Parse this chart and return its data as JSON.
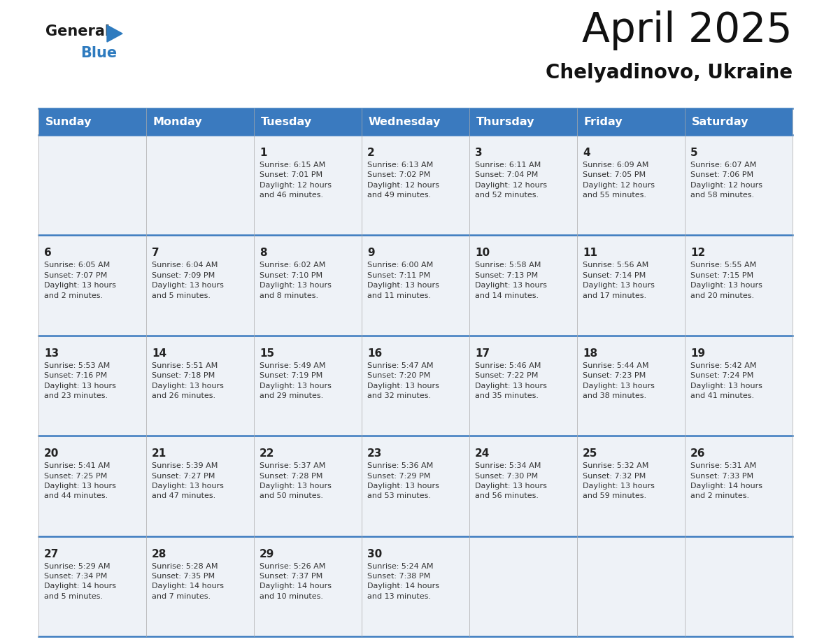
{
  "title": "April 2025",
  "subtitle": "Chelyadinovo, Ukraine",
  "header_color": "#3a7abf",
  "header_text_color": "#ffffff",
  "days_of_week": [
    "Sunday",
    "Monday",
    "Tuesday",
    "Wednesday",
    "Thursday",
    "Friday",
    "Saturday"
  ],
  "cell_bg_color": "#eef2f7",
  "border_color": "#3a7abf",
  "day_number_color": "#222222",
  "cell_text_color": "#333333",
  "calendar": [
    [
      {
        "day": null,
        "info": ""
      },
      {
        "day": null,
        "info": ""
      },
      {
        "day": 1,
        "info": "Sunrise: 6:15 AM\nSunset: 7:01 PM\nDaylight: 12 hours\nand 46 minutes."
      },
      {
        "day": 2,
        "info": "Sunrise: 6:13 AM\nSunset: 7:02 PM\nDaylight: 12 hours\nand 49 minutes."
      },
      {
        "day": 3,
        "info": "Sunrise: 6:11 AM\nSunset: 7:04 PM\nDaylight: 12 hours\nand 52 minutes."
      },
      {
        "day": 4,
        "info": "Sunrise: 6:09 AM\nSunset: 7:05 PM\nDaylight: 12 hours\nand 55 minutes."
      },
      {
        "day": 5,
        "info": "Sunrise: 6:07 AM\nSunset: 7:06 PM\nDaylight: 12 hours\nand 58 minutes."
      }
    ],
    [
      {
        "day": 6,
        "info": "Sunrise: 6:05 AM\nSunset: 7:07 PM\nDaylight: 13 hours\nand 2 minutes."
      },
      {
        "day": 7,
        "info": "Sunrise: 6:04 AM\nSunset: 7:09 PM\nDaylight: 13 hours\nand 5 minutes."
      },
      {
        "day": 8,
        "info": "Sunrise: 6:02 AM\nSunset: 7:10 PM\nDaylight: 13 hours\nand 8 minutes."
      },
      {
        "day": 9,
        "info": "Sunrise: 6:00 AM\nSunset: 7:11 PM\nDaylight: 13 hours\nand 11 minutes."
      },
      {
        "day": 10,
        "info": "Sunrise: 5:58 AM\nSunset: 7:13 PM\nDaylight: 13 hours\nand 14 minutes."
      },
      {
        "day": 11,
        "info": "Sunrise: 5:56 AM\nSunset: 7:14 PM\nDaylight: 13 hours\nand 17 minutes."
      },
      {
        "day": 12,
        "info": "Sunrise: 5:55 AM\nSunset: 7:15 PM\nDaylight: 13 hours\nand 20 minutes."
      }
    ],
    [
      {
        "day": 13,
        "info": "Sunrise: 5:53 AM\nSunset: 7:16 PM\nDaylight: 13 hours\nand 23 minutes."
      },
      {
        "day": 14,
        "info": "Sunrise: 5:51 AM\nSunset: 7:18 PM\nDaylight: 13 hours\nand 26 minutes."
      },
      {
        "day": 15,
        "info": "Sunrise: 5:49 AM\nSunset: 7:19 PM\nDaylight: 13 hours\nand 29 minutes."
      },
      {
        "day": 16,
        "info": "Sunrise: 5:47 AM\nSunset: 7:20 PM\nDaylight: 13 hours\nand 32 minutes."
      },
      {
        "day": 17,
        "info": "Sunrise: 5:46 AM\nSunset: 7:22 PM\nDaylight: 13 hours\nand 35 minutes."
      },
      {
        "day": 18,
        "info": "Sunrise: 5:44 AM\nSunset: 7:23 PM\nDaylight: 13 hours\nand 38 minutes."
      },
      {
        "day": 19,
        "info": "Sunrise: 5:42 AM\nSunset: 7:24 PM\nDaylight: 13 hours\nand 41 minutes."
      }
    ],
    [
      {
        "day": 20,
        "info": "Sunrise: 5:41 AM\nSunset: 7:25 PM\nDaylight: 13 hours\nand 44 minutes."
      },
      {
        "day": 21,
        "info": "Sunrise: 5:39 AM\nSunset: 7:27 PM\nDaylight: 13 hours\nand 47 minutes."
      },
      {
        "day": 22,
        "info": "Sunrise: 5:37 AM\nSunset: 7:28 PM\nDaylight: 13 hours\nand 50 minutes."
      },
      {
        "day": 23,
        "info": "Sunrise: 5:36 AM\nSunset: 7:29 PM\nDaylight: 13 hours\nand 53 minutes."
      },
      {
        "day": 24,
        "info": "Sunrise: 5:34 AM\nSunset: 7:30 PM\nDaylight: 13 hours\nand 56 minutes."
      },
      {
        "day": 25,
        "info": "Sunrise: 5:32 AM\nSunset: 7:32 PM\nDaylight: 13 hours\nand 59 minutes."
      },
      {
        "day": 26,
        "info": "Sunrise: 5:31 AM\nSunset: 7:33 PM\nDaylight: 14 hours\nand 2 minutes."
      }
    ],
    [
      {
        "day": 27,
        "info": "Sunrise: 5:29 AM\nSunset: 7:34 PM\nDaylight: 14 hours\nand 5 minutes."
      },
      {
        "day": 28,
        "info": "Sunrise: 5:28 AM\nSunset: 7:35 PM\nDaylight: 14 hours\nand 7 minutes."
      },
      {
        "day": 29,
        "info": "Sunrise: 5:26 AM\nSunset: 7:37 PM\nDaylight: 14 hours\nand 10 minutes."
      },
      {
        "day": 30,
        "info": "Sunrise: 5:24 AM\nSunset: 7:38 PM\nDaylight: 14 hours\nand 13 minutes."
      },
      {
        "day": null,
        "info": ""
      },
      {
        "day": null,
        "info": ""
      },
      {
        "day": null,
        "info": ""
      }
    ]
  ]
}
